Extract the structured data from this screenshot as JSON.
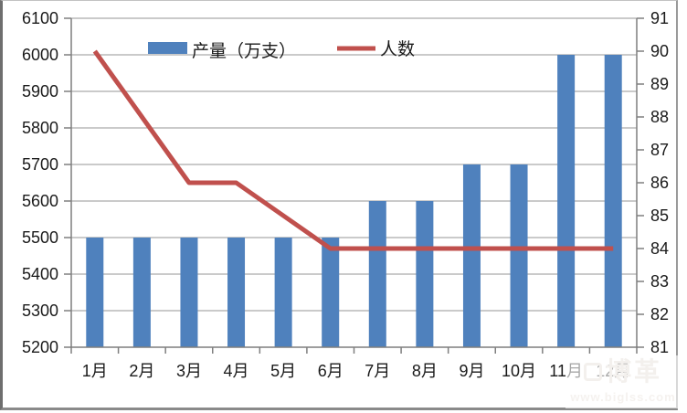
{
  "watermark": {
    "logo_text": "博革",
    "url_text": "www.biglss.com"
  },
  "chart_data": {
    "type": "bar",
    "subtype": "combo-bar-line",
    "categories": [
      "1月",
      "2月",
      "3月",
      "4月",
      "5月",
      "6月",
      "7月",
      "8月",
      "9月",
      "10月",
      "11月",
      "12月"
    ],
    "series": [
      {
        "name": "产量（万支）",
        "kind": "bar",
        "axis": "left",
        "color": "#4f81bd",
        "values": [
          5500,
          5500,
          5500,
          5500,
          5500,
          5500,
          5600,
          5600,
          5700,
          5700,
          6000,
          6000
        ]
      },
      {
        "name": "人数",
        "kind": "line",
        "axis": "right",
        "color": "#c0504d",
        "values": [
          90,
          88,
          86,
          86,
          85,
          84,
          84,
          84,
          84,
          84,
          84,
          84
        ]
      }
    ],
    "title": "",
    "xlabel": "",
    "ylabel": "",
    "left_axis": {
      "min": 5200,
      "max": 6100,
      "step": 100,
      "labels": [
        "5200",
        "5300",
        "5400",
        "5500",
        "5600",
        "5700",
        "5800",
        "5900",
        "6000",
        "6100"
      ]
    },
    "right_axis": {
      "min": 81,
      "max": 91,
      "step": 1,
      "labels": [
        "81",
        "82",
        "83",
        "84",
        "85",
        "86",
        "87",
        "88",
        "89",
        "90",
        "91"
      ]
    },
    "legend_position": "top-center",
    "grid": true,
    "colors": {
      "gridline": "#969696",
      "axis": "#7f7f7f",
      "text": "#1a1a1a"
    }
  }
}
